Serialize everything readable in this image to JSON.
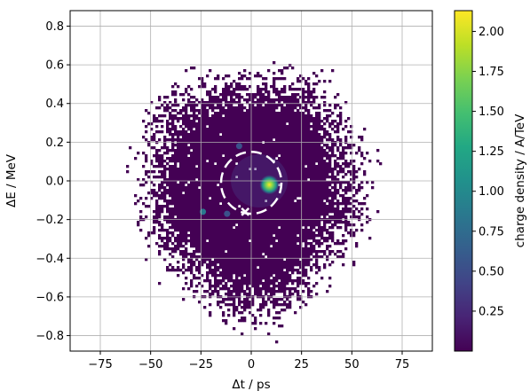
{
  "chart_data": {
    "type": "heatmap",
    "xlabel": "Δt / ps",
    "ylabel": "ΔE / MeV",
    "colorbar_label": "charge density / A/TeV",
    "xlim": [
      -90,
      90
    ],
    "ylim": [
      -0.88,
      0.88
    ],
    "xticks": [
      -75,
      -50,
      -25,
      0,
      25,
      50,
      75
    ],
    "xtick_labels": [
      "−75",
      "−50",
      "−25",
      "0",
      "25",
      "50",
      "75"
    ],
    "yticks": [
      -0.8,
      -0.6,
      -0.4,
      -0.2,
      0.0,
      0.2,
      0.4,
      0.6,
      0.8
    ],
    "ytick_labels": [
      "−0.8",
      "−0.6",
      "−0.4",
      "−0.2",
      "0.0",
      "0.2",
      "0.4",
      "0.6",
      "0.8"
    ],
    "colorbar_range": [
      0.0,
      2.13
    ],
    "colorbar_ticks": [
      0.25,
      0.5,
      0.75,
      1.0,
      1.25,
      1.5,
      1.75,
      2.0
    ],
    "colorbar_tick_labels": [
      "0.25",
      "0.50",
      "0.75",
      "1.00",
      "1.25",
      "1.50",
      "1.75",
      "2.00"
    ],
    "colormap": "viridis",
    "grid": true,
    "distribution": {
      "shape": "ring-shaped particle distribution",
      "center_dt": 0,
      "center_dE": -0.05,
      "core_radius_dt": 40,
      "outer_radius_dt": 60,
      "core_radius_dE": 0.46,
      "outer_radius_dE": 0.66
    },
    "hotspots": [
      {
        "dt": 9,
        "dE": -0.02,
        "value": 2.1
      },
      {
        "dt": -24,
        "dE": -0.16,
        "value": 0.6
      },
      {
        "dt": -12,
        "dE": -0.17,
        "value": 0.35
      },
      {
        "dt": -6,
        "dE": 0.18,
        "value": 0.3
      }
    ],
    "annotations": [
      {
        "type": "dashed circle",
        "center_dt": 0,
        "center_dE": -0.01,
        "radius_dt": 15,
        "radius_dE": 0.16,
        "color": "#ffffff"
      },
      {
        "type": "marker",
        "symbol": "x",
        "dt": -3,
        "dE": -0.16,
        "color": "#ffffff"
      }
    ]
  }
}
